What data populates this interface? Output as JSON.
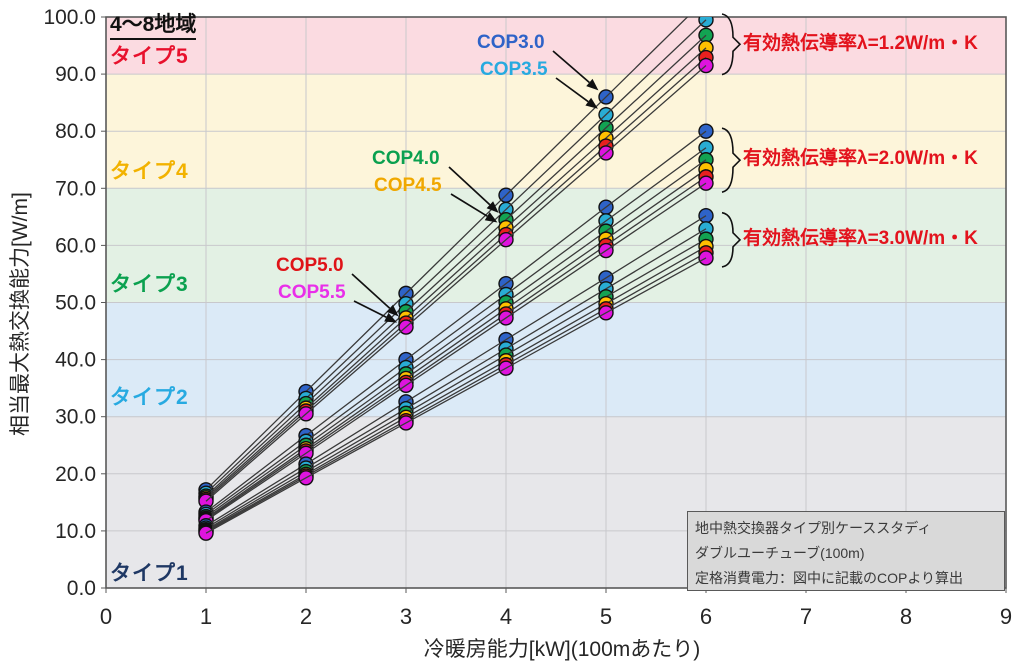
{
  "title": "4〜8地域",
  "axis": {
    "x": {
      "title": "冷暖房能力[kW](100mあたり)",
      "min": 0,
      "max": 9,
      "tick_labels": [
        "0",
        "1",
        "2",
        "3",
        "4",
        "5",
        "6",
        "7",
        "8",
        "9"
      ]
    },
    "y": {
      "title": "相当最大熱交換能力[W/m]",
      "min": 0,
      "max": 100,
      "tick_labels": [
        "100.0",
        "90.0",
        "80.0",
        "70.0",
        "60.0",
        "50.0",
        "40.0",
        "30.0",
        "20.0",
        "10.0",
        "0.0"
      ]
    }
  },
  "bands": [
    {
      "label": "タイプ1",
      "from": 0,
      "to": 30,
      "fill": "#e7e7ea",
      "label_color": "#1f3864"
    },
    {
      "label": "タイプ2",
      "from": 30,
      "to": 50,
      "fill": "#dbeaf7",
      "label_color": "#27aae1"
    },
    {
      "label": "タイプ3",
      "from": 50,
      "to": 70,
      "fill": "#e3f1e4",
      "label_color": "#0ba14f"
    },
    {
      "label": "タイプ4",
      "from": 70,
      "to": 90,
      "fill": "#fdf5da",
      "label_color": "#f2b200"
    },
    {
      "label": "タイプ5",
      "from": 90,
      "to": 100,
      "fill": "#fbdbe1",
      "label_color": "#e8112d"
    }
  ],
  "cop_legend": [
    {
      "label": "COP3.0",
      "color": "#2e63c8"
    },
    {
      "label": "COP3.5",
      "color": "#27aadf"
    },
    {
      "label": "COP4.0",
      "color": "#0aa04f"
    },
    {
      "label": "COP4.5",
      "color": "#f0a800"
    },
    {
      "label": "COP5.0",
      "color": "#df1418"
    },
    {
      "label": "COP5.5",
      "color": "#e92fe9"
    }
  ],
  "chart_data": {
    "type": "scatter",
    "title": "4〜8地域",
    "xlabel": "冷暖房能力[kW](100mあたり)",
    "ylabel": "相当最大熱交換能力[W/m]",
    "xlim": [
      0,
      9
    ],
    "ylim": [
      0,
      100
    ],
    "grid": true,
    "x": [
      1,
      2,
      3,
      4,
      5,
      6
    ],
    "groups": [
      {
        "lambda": "1.2",
        "annotation": "有効熱伝導率λ=1.2W/m・K",
        "annotation_color": "#e3131d",
        "series": [
          {
            "name": "COP3.0",
            "color": "#2e63c8",
            "values": [
              17.2,
              34.4,
              51.6,
              68.8,
              86.0,
              103.2
            ]
          },
          {
            "name": "COP3.5",
            "color": "#29acd4",
            "values": [
              16.6,
              33.2,
              49.8,
              66.3,
              82.9,
              99.5
            ]
          },
          {
            "name": "COP4.0",
            "color": "#12a352",
            "values": [
              16.1,
              32.3,
              48.4,
              64.5,
              80.6,
              96.8
            ]
          },
          {
            "name": "COP4.5",
            "color": "#ffc000",
            "values": [
              15.8,
              31.5,
              47.3,
              63.1,
              78.8,
              94.6
            ]
          },
          {
            "name": "COP5.0",
            "color": "#e8201f",
            "values": [
              15.5,
              31.0,
              46.4,
              61.9,
              77.4,
              92.9
            ]
          },
          {
            "name": "COP5.5",
            "color": "#de14de",
            "values": [
              15.2,
              30.5,
              45.7,
              61.0,
              76.2,
              91.5
            ]
          }
        ]
      },
      {
        "lambda": "2.0",
        "annotation": "有効熱伝導率λ=2.0W/m・K",
        "annotation_color": "#e3131d",
        "series": [
          {
            "name": "COP3.0",
            "color": "#2e63c8",
            "values": [
              13.3,
              26.7,
              40.0,
              53.3,
              66.7,
              80.0
            ]
          },
          {
            "name": "COP3.5",
            "color": "#29acd4",
            "values": [
              12.9,
              25.7,
              38.6,
              51.4,
              64.3,
              77.1
            ]
          },
          {
            "name": "COP4.0",
            "color": "#12a352",
            "values": [
              12.5,
              25.0,
              37.5,
              50.0,
              62.5,
              75.0
            ]
          },
          {
            "name": "COP4.5",
            "color": "#ffc000",
            "values": [
              12.2,
              24.4,
              36.7,
              48.9,
              61.1,
              73.3
            ]
          },
          {
            "name": "COP5.0",
            "color": "#e8201f",
            "values": [
              12.0,
              24.0,
              36.0,
              48.0,
              60.0,
              72.0
            ]
          },
          {
            "name": "COP5.5",
            "color": "#de14de",
            "values": [
              11.8,
              23.6,
              35.5,
              47.3,
              59.1,
              70.9
            ]
          }
        ]
      },
      {
        "lambda": "3.0",
        "annotation": "有効熱伝導率λ=3.0W/m・K",
        "annotation_color": "#e3131d",
        "series": [
          {
            "name": "COP3.0",
            "color": "#2e63c8",
            "values": [
              10.9,
              21.7,
              32.6,
              43.5,
              54.3,
              65.2
            ]
          },
          {
            "name": "COP3.5",
            "color": "#29acd4",
            "values": [
              10.5,
              21.0,
              31.4,
              41.9,
              52.4,
              62.9
            ]
          },
          {
            "name": "COP4.0",
            "color": "#12a352",
            "values": [
              10.2,
              20.4,
              30.6,
              40.8,
              51.0,
              61.1
            ]
          },
          {
            "name": "COP4.5",
            "color": "#ffc000",
            "values": [
              10.0,
              19.9,
              29.9,
              39.8,
              49.8,
              59.8
            ]
          },
          {
            "name": "COP5.0",
            "color": "#e8201f",
            "values": [
              9.8,
              19.6,
              29.3,
              39.1,
              48.9,
              58.7
            ]
          },
          {
            "name": "COP5.5",
            "color": "#de14de",
            "values": [
              9.6,
              19.3,
              28.9,
              38.5,
              48.2,
              57.8
            ]
          }
        ]
      }
    ]
  },
  "infobox": {
    "lines": [
      "地中熱交換器タイプ別ケーススタディ",
      "ダブルユーチューブ(100m)",
      "定格消費電力：図中に記載のCOPより算出"
    ]
  }
}
